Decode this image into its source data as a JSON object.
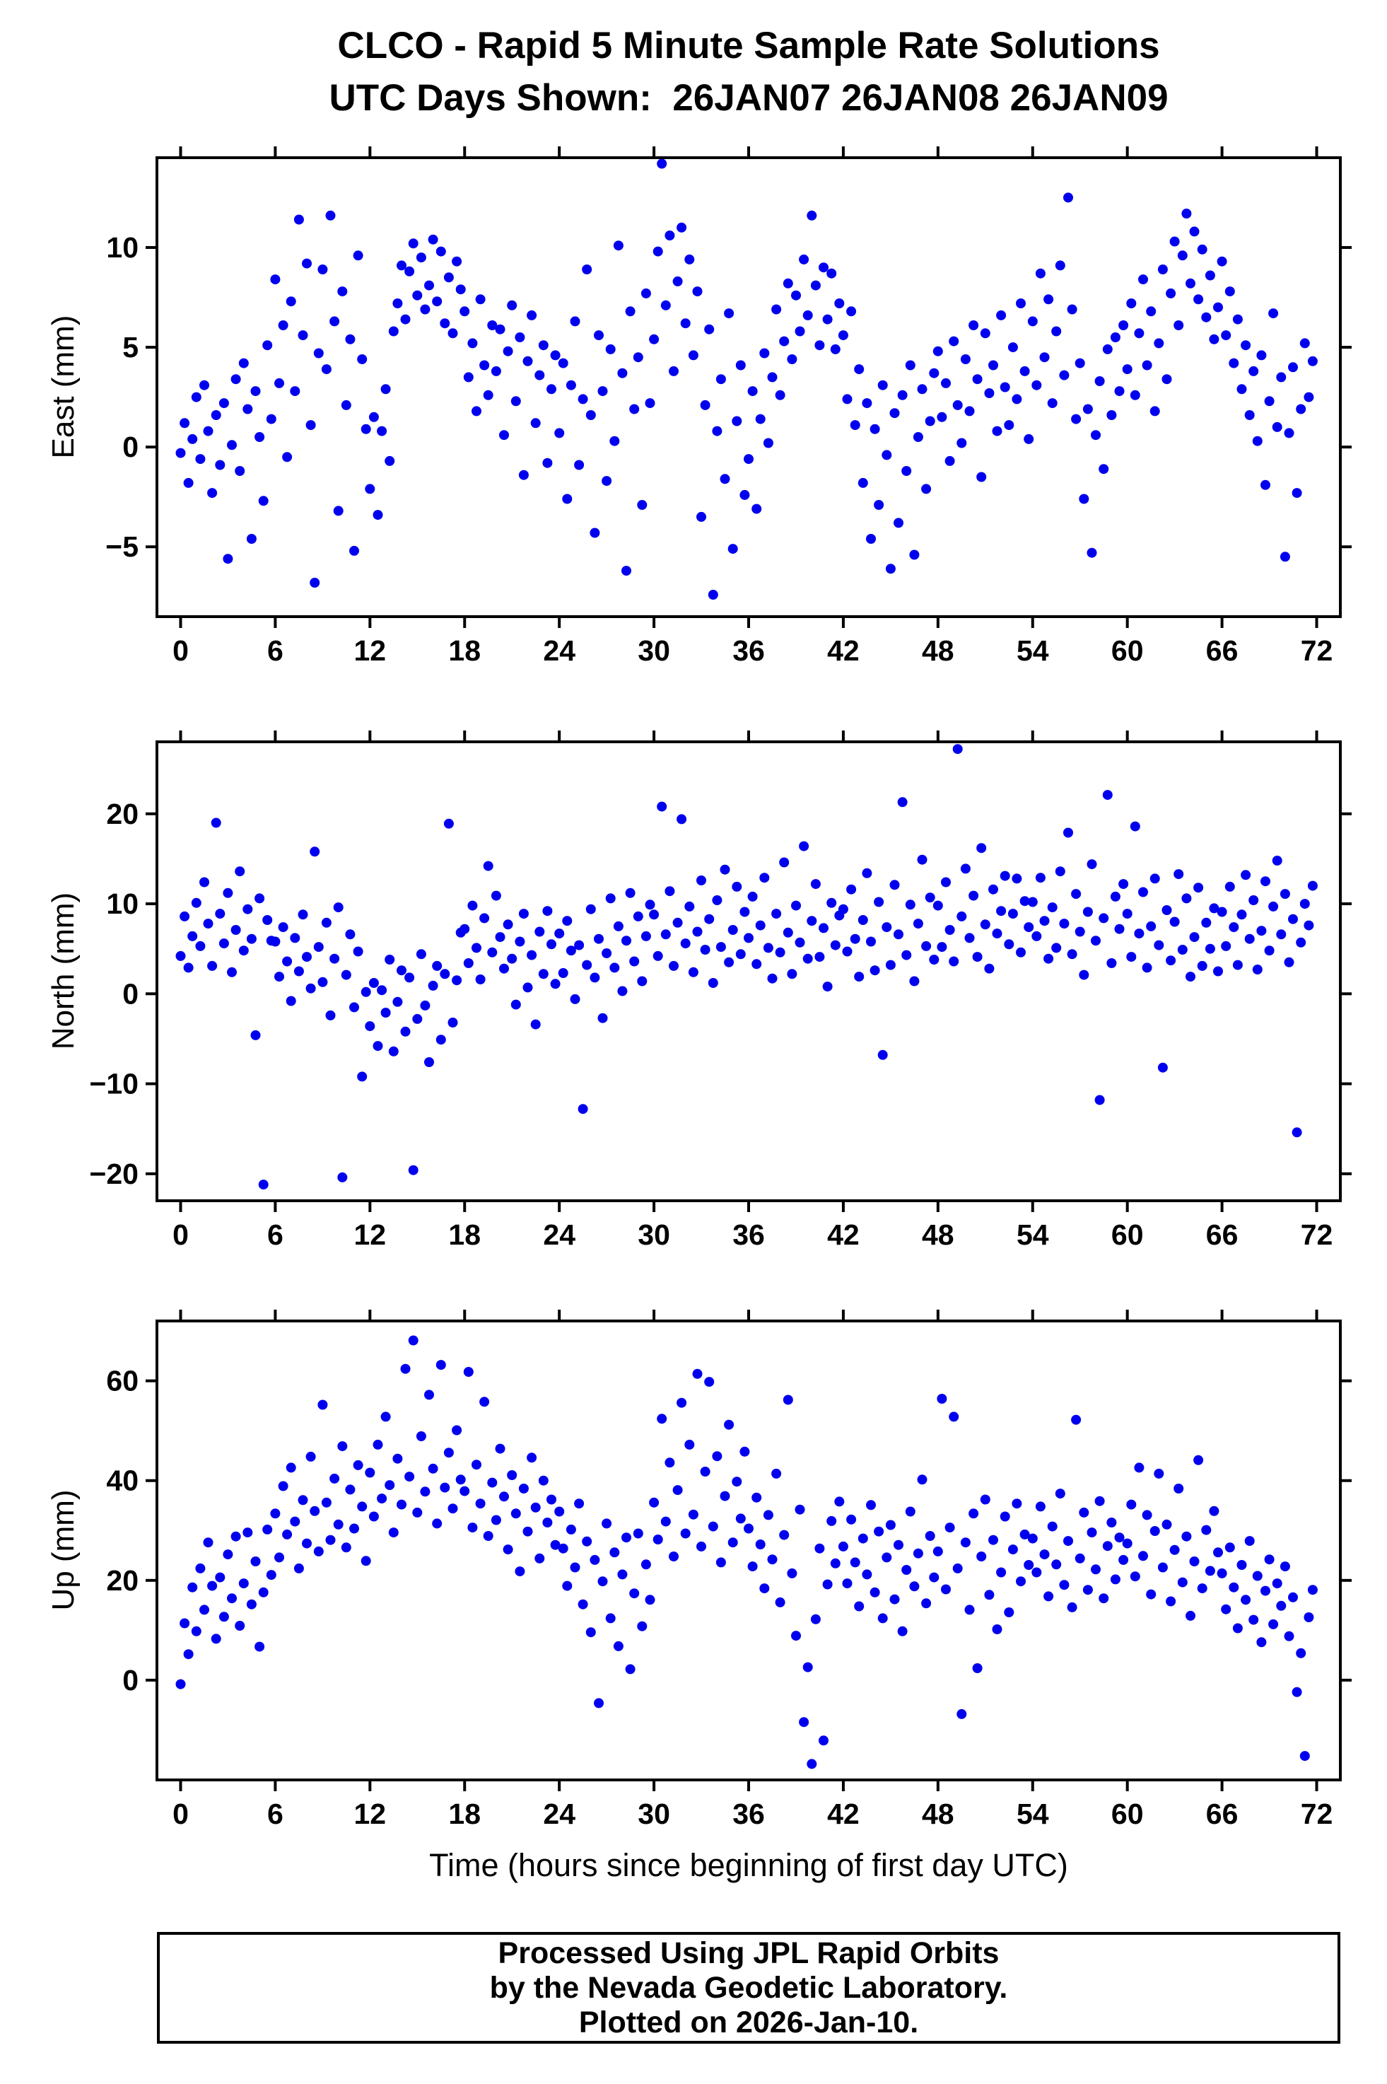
{
  "header": {
    "title": "CLCO - Rapid 5 Minute Sample Rate Solutions",
    "subtitle": "UTC Days Shown:  26JAN07 26JAN08 26JAN09"
  },
  "footer": {
    "line1": "Processed Using JPL Rapid Orbits",
    "line2": "by the Nevada Geodetic Laboratory.",
    "line3": "Plotted on 2026-Jan-10."
  },
  "style": {
    "marker_color": "#0000ee",
    "frame_color": "#000000",
    "background": "#ffffff"
  },
  "chart_data": [
    {
      "type": "scatter",
      "name": "east",
      "ylabel": "East (mm)",
      "xlim": [
        -1.5,
        73.5
      ],
      "ylim": [
        -8.5,
        14.5
      ],
      "xticks": [
        0,
        6,
        12,
        18,
        24,
        30,
        36,
        42,
        48,
        54,
        60,
        66,
        72
      ],
      "yticks": [
        -5,
        0,
        5,
        10
      ],
      "x_start": 0,
      "x_step": 0.25,
      "y": [
        -0.3,
        1.2,
        -1.8,
        0.4,
        2.5,
        -0.6,
        3.1,
        0.8,
        -2.3,
        1.6,
        -0.9,
        2.2,
        -5.6,
        0.1,
        3.4,
        -1.2,
        4.2,
        1.9,
        -4.6,
        2.8,
        0.5,
        -2.7,
        5.1,
        1.4,
        8.4,
        3.2,
        6.1,
        -0.5,
        7.3,
        2.8,
        11.4,
        5.6,
        9.2,
        1.1,
        -6.8,
        4.7,
        8.9,
        3.9,
        11.6,
        6.3,
        -3.2,
        7.8,
        2.1,
        5.4,
        -5.2,
        9.6,
        4.4,
        0.9,
        -2.1,
        1.5,
        -3.4,
        0.8,
        2.9,
        -0.7,
        5.8,
        7.2,
        9.1,
        6.4,
        8.8,
        10.2,
        7.6,
        9.5,
        6.9,
        8.1,
        10.4,
        7.3,
        9.8,
        6.2,
        8.5,
        5.7,
        9.3,
        7.9,
        6.8,
        3.5,
        5.2,
        1.8,
        7.4,
        4.1,
        2.6,
        6.1,
        3.8,
        5.9,
        0.6,
        4.8,
        7.1,
        2.3,
        5.5,
        -1.4,
        4.3,
        6.6,
        1.2,
        3.6,
        5.1,
        -0.8,
        2.9,
        4.6,
        0.7,
        4.2,
        -2.6,
        3.1,
        6.3,
        -0.9,
        2.4,
        8.9,
        1.6,
        -4.3,
        5.6,
        2.8,
        -1.7,
        4.9,
        0.3,
        10.1,
        3.7,
        -6.2,
        6.8,
        1.9,
        4.5,
        -2.9,
        7.7,
        2.2,
        5.4,
        9.8,
        14.2,
        7.1,
        10.6,
        3.8,
        8.3,
        11.0,
        6.2,
        9.4,
        4.6,
        7.8,
        -3.5,
        2.1,
        5.9,
        -7.4,
        0.8,
        3.4,
        -1.6,
        6.7,
        -5.1,
        1.3,
        4.1,
        -2.4,
        -0.6,
        2.8,
        -3.1,
        1.4,
        4.7,
        0.2,
        3.5,
        6.9,
        2.6,
        5.3,
        8.2,
        4.4,
        7.6,
        5.8,
        9.4,
        6.6,
        11.6,
        8.1,
        5.1,
        9.0,
        6.4,
        8.7,
        4.9,
        7.2,
        5.6,
        2.4,
        6.8,
        1.1,
        3.9,
        -1.8,
        2.2,
        -4.6,
        0.9,
        -2.9,
        3.1,
        -0.4,
        -6.1,
        1.7,
        -3.8,
        2.6,
        -1.2,
        4.1,
        -5.4,
        0.5,
        2.9,
        -2.1,
        1.3,
        3.7,
        4.8,
        1.5,
        3.2,
        -0.7,
        5.3,
        2.1,
        0.2,
        4.4,
        1.8,
        6.1,
        3.4,
        -1.5,
        5.7,
        2.7,
        4.1,
        0.8,
        6.6,
        3.0,
        1.1,
        5.0,
        2.4,
        7.2,
        3.8,
        0.4,
        6.3,
        3.1,
        8.7,
        4.5,
        7.4,
        2.2,
        5.8,
        9.1,
        3.6,
        12.5,
        6.9,
        1.4,
        4.2,
        -2.6,
        1.9,
        -5.3,
        0.6,
        3.3,
        -1.1,
        4.9,
        1.6,
        5.5,
        2.8,
        6.1,
        3.9,
        7.2,
        2.6,
        5.7,
        8.4,
        4.1,
        6.8,
        1.8,
        5.2,
        8.9,
        3.4,
        7.7,
        10.3,
        6.1,
        9.6,
        11.7,
        8.2,
        10.8,
        7.4,
        9.9,
        6.5,
        8.6,
        5.4,
        7.0,
        9.3,
        5.6,
        7.8,
        4.2,
        6.4,
        2.9,
        5.1,
        1.6,
        3.8,
        0.3,
        4.6,
        -1.9,
        2.3,
        6.7,
        1.0,
        3.5,
        -5.5,
        0.7,
        4.0,
        -2.3,
        1.9,
        5.2,
        2.5,
        4.3
      ]
    },
    {
      "type": "scatter",
      "name": "north",
      "ylabel": "North (mm)",
      "xlim": [
        -1.5,
        73.5
      ],
      "ylim": [
        -23,
        28
      ],
      "xticks": [
        0,
        6,
        12,
        18,
        24,
        30,
        36,
        42,
        48,
        54,
        60,
        66,
        72
      ],
      "yticks": [
        -20,
        -10,
        0,
        10,
        20
      ],
      "x_start": 0,
      "x_step": 0.25,
      "y": [
        4.2,
        8.6,
        2.9,
        6.4,
        10.1,
        5.3,
        12.4,
        7.8,
        3.1,
        19.0,
        8.9,
        5.6,
        11.2,
        2.4,
        7.1,
        13.6,
        4.8,
        9.4,
        6.1,
        -4.6,
        10.6,
        -21.2,
        8.2,
        5.9,
        5.8,
        1.9,
        7.4,
        3.6,
        -0.8,
        6.2,
        2.5,
        8.8,
        4.1,
        0.6,
        15.8,
        5.2,
        1.3,
        7.9,
        -2.4,
        3.9,
        9.6,
        -20.4,
        2.1,
        6.6,
        -1.5,
        4.7,
        -9.2,
        0.2,
        -3.6,
        1.2,
        -5.8,
        0.4,
        -2.1,
        3.8,
        -6.4,
        -0.9,
        2.6,
        -4.2,
        1.8,
        -19.6,
        -2.8,
        4.4,
        -1.3,
        -7.6,
        0.9,
        3.1,
        -5.1,
        2.2,
        18.9,
        -3.2,
        1.5,
        6.8,
        7.2,
        3.4,
        9.8,
        5.1,
        1.6,
        8.4,
        14.2,
        4.6,
        10.9,
        6.3,
        2.8,
        7.7,
        3.9,
        -1.2,
        5.8,
        8.9,
        0.7,
        4.3,
        -3.4,
        6.9,
        2.2,
        9.2,
        5.5,
        1.1,
        6.7,
        2.3,
        8.1,
        4.8,
        -0.6,
        5.4,
        -12.8,
        3.2,
        9.4,
        1.8,
        6.1,
        -2.7,
        4.5,
        10.6,
        2.9,
        7.5,
        0.3,
        5.9,
        11.2,
        3.6,
        8.6,
        1.4,
        6.4,
        9.9,
        8.8,
        4.2,
        20.8,
        6.6,
        11.4,
        3.1,
        7.9,
        19.4,
        5.6,
        9.7,
        2.4,
        6.9,
        12.6,
        4.9,
        8.3,
        1.2,
        10.4,
        5.2,
        13.8,
        3.5,
        7.1,
        11.9,
        4.4,
        9.1,
        6.2,
        10.8,
        3.3,
        7.6,
        12.9,
        5.1,
        1.7,
        8.9,
        4.6,
        14.6,
        6.8,
        2.2,
        9.8,
        5.7,
        16.4,
        3.9,
        8.1,
        12.2,
        4.1,
        7.3,
        0.8,
        10.1,
        5.4,
        8.7,
        9.4,
        4.7,
        11.6,
        6.1,
        1.9,
        8.2,
        13.4,
        5.8,
        2.6,
        10.2,
        -6.8,
        7.4,
        3.2,
        12.1,
        6.6,
        21.3,
        4.3,
        9.9,
        1.4,
        7.8,
        14.9,
        5.3,
        10.7,
        3.8,
        9.8,
        5.2,
        12.4,
        7.1,
        3.6,
        27.2,
        8.6,
        13.9,
        6.2,
        10.9,
        4.1,
        16.2,
        7.7,
        2.8,
        11.6,
        6.7,
        9.2,
        13.1,
        5.5,
        8.9,
        12.8,
        4.6,
        10.3,
        7.4,
        10.2,
        6.4,
        12.9,
        8.1,
        3.9,
        9.6,
        5.1,
        13.6,
        7.8,
        17.9,
        4.4,
        11.1,
        6.9,
        2.1,
        9.1,
        14.4,
        5.9,
        -11.8,
        8.4,
        22.1,
        3.4,
        10.8,
        7.2,
        12.2,
        8.9,
        4.1,
        18.6,
        6.7,
        11.3,
        2.9,
        7.5,
        12.8,
        5.4,
        -8.2,
        9.3,
        3.7,
        8.0,
        13.3,
        4.9,
        10.6,
        1.9,
        6.3,
        11.8,
        3.1,
        7.9,
        5.0,
        9.5,
        2.5,
        9.1,
        5.3,
        11.9,
        7.4,
        3.2,
        8.8,
        13.2,
        6.1,
        10.4,
        2.7,
        7.0,
        12.5,
        4.8,
        9.7,
        14.8,
        6.6,
        11.1,
        3.5,
        8.3,
        -15.4,
        5.7,
        10.0,
        7.6,
        12.0
      ]
    },
    {
      "type": "scatter",
      "name": "up",
      "ylabel": "Up (mm)",
      "xlabel": "Time (hours since beginning of first day UTC)",
      "xlim": [
        -1.5,
        73.5
      ],
      "ylim": [
        -20,
        72
      ],
      "xticks": [
        0,
        6,
        12,
        18,
        24,
        30,
        36,
        42,
        48,
        54,
        60,
        66,
        72
      ],
      "yticks": [
        0,
        20,
        40,
        60
      ],
      "x_start": 0,
      "x_step": 0.25,
      "y": [
        -0.8,
        11.4,
        5.2,
        18.6,
        9.8,
        22.4,
        14.1,
        27.6,
        18.9,
        8.3,
        20.6,
        12.7,
        25.2,
        16.4,
        28.8,
        10.9,
        19.4,
        29.6,
        15.2,
        23.8,
        6.7,
        17.6,
        30.2,
        21.1,
        33.4,
        24.6,
        38.9,
        29.2,
        42.6,
        31.8,
        22.4,
        36.1,
        27.4,
        44.8,
        33.9,
        25.8,
        55.2,
        35.6,
        28.1,
        40.4,
        31.2,
        46.9,
        26.6,
        38.2,
        30.4,
        43.1,
        34.8,
        23.9,
        41.6,
        32.8,
        47.2,
        36.4,
        52.8,
        39.1,
        29.6,
        44.4,
        35.2,
        62.4,
        40.8,
        68.1,
        33.6,
        48.9,
        37.8,
        57.2,
        42.4,
        31.4,
        63.2,
        38.6,
        45.6,
        34.4,
        50.1,
        40.2,
        37.9,
        61.8,
        30.6,
        43.2,
        35.4,
        55.8,
        28.9,
        39.6,
        32.1,
        46.4,
        36.8,
        26.2,
        41.1,
        33.4,
        21.8,
        38.4,
        29.8,
        44.6,
        34.6,
        24.4,
        40.0,
        31.6,
        36.2,
        27.1,
        33.8,
        26.4,
        18.9,
        30.2,
        22.6,
        35.4,
        15.2,
        27.8,
        9.6,
        24.1,
        -4.6,
        19.8,
        31.4,
        12.4,
        25.6,
        6.8,
        21.2,
        28.6,
        2.2,
        17.4,
        29.4,
        10.8,
        23.2,
        16.1,
        35.6,
        28.2,
        52.4,
        31.8,
        43.6,
        24.8,
        38.1,
        55.6,
        29.4,
        47.2,
        33.2,
        61.4,
        26.8,
        41.8,
        59.8,
        30.8,
        44.9,
        23.6,
        36.9,
        51.2,
        27.6,
        39.8,
        32.4,
        45.8,
        30.4,
        22.8,
        36.6,
        27.2,
        18.4,
        33.1,
        24.2,
        41.4,
        15.6,
        29.1,
        56.2,
        21.4,
        8.9,
        34.2,
        -8.4,
        2.6,
        -16.8,
        12.2,
        26.4,
        -12.1,
        19.2,
        31.9,
        23.4,
        35.8,
        26.8,
        19.4,
        32.2,
        23.6,
        14.8,
        28.4,
        21.2,
        35.1,
        17.6,
        29.8,
        12.4,
        24.6,
        31.1,
        16.2,
        27.1,
        9.8,
        22.1,
        33.8,
        18.8,
        25.4,
        40.2,
        15.4,
        28.9,
        20.6,
        25.8,
        56.4,
        18.2,
        30.6,
        52.8,
        22.4,
        -6.8,
        27.6,
        14.1,
        33.4,
        2.4,
        24.8,
        36.2,
        17.1,
        28.1,
        10.2,
        21.6,
        32.8,
        13.6,
        26.2,
        35.4,
        19.8,
        29.2,
        23.1,
        28.4,
        21.6,
        34.8,
        25.2,
        16.8,
        30.8,
        23.2,
        37.4,
        19.1,
        27.9,
        14.6,
        52.2,
        24.4,
        33.6,
        18.1,
        29.6,
        22.2,
        35.9,
        16.4,
        26.9,
        31.6,
        20.2,
        28.6,
        24.1,
        27.4,
        35.2,
        20.8,
        42.6,
        24.9,
        33.1,
        17.2,
        29.9,
        41.4,
        22.6,
        31.2,
        15.8,
        26.1,
        38.4,
        19.6,
        28.8,
        12.9,
        23.8,
        44.1,
        18.4,
        30.1,
        21.9,
        33.9,
        25.6,
        21.4,
        14.2,
        26.6,
        18.6,
        10.4,
        23.1,
        16.1,
        27.9,
        12.1,
        20.9,
        7.6,
        17.9,
        24.2,
        11.2,
        19.4,
        14.9,
        22.8,
        8.8,
        16.6,
        -2.4,
        5.4,
        -15.2,
        12.6,
        18.1
      ]
    }
  ]
}
